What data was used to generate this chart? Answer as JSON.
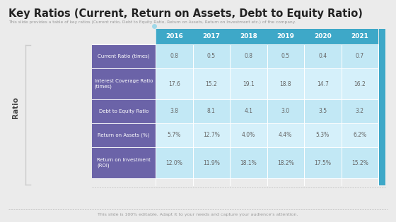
{
  "title": "Key Ratios (Current, Return on Assets, Debt to Equity Ratio)",
  "subtitle": "This slide provides a table of key ratios (Current ratio, Debt to Equity Ratio, Return on Assets, Return on Investment etc.) of the company.",
  "footer": "This slide is 100% editable. Adapt it to your needs and capture your audience's attention.",
  "y_axis_label": "Ratio",
  "years": [
    "2016",
    "2017",
    "2018",
    "2019",
    "2020",
    "2021"
  ],
  "row_labels": [
    "Current Ratio (times)",
    "Interest Coverage Ratio\n(times)",
    "Debt to Equity Ratio",
    "Return on Assets (%)",
    "Return on Investment\n(ROI)"
  ],
  "table_data": [
    [
      "0.8",
      "0.5",
      "0.8",
      "0.5",
      "0.4",
      "0.7"
    ],
    [
      "17.6",
      "15.2",
      "19.1",
      "18.8",
      "14.7",
      "16.2"
    ],
    [
      "3.8",
      "8.1",
      "4.1",
      "3.0",
      "3.5",
      "3.2"
    ],
    [
      "5.7%",
      "12.7%",
      "4.0%",
      "4.4%",
      "5.3%",
      "6.2%"
    ],
    [
      "12.0%",
      "11.9%",
      "18.1%",
      "18.2%",
      "17.5%",
      "15.2%"
    ]
  ],
  "header_bg_color": "#3EA8C8",
  "header_text_color": "#FFFFFF",
  "row_label_bg_color": "#6B63A8",
  "row_label_text_color": "#FFFFFF",
  "cell_bg_color_1": "#C2E8F5",
  "cell_bg_color_2": "#D5F0FA",
  "cell_text_color": "#666666",
  "bg_color": "#EBEBEB",
  "title_color": "#222222",
  "subtitle_color": "#999999",
  "footer_color": "#999999",
  "sidebar_color": "#3EA8C8",
  "bracket_color": "#CCCCCC",
  "dot_color": "#A0D8E8"
}
